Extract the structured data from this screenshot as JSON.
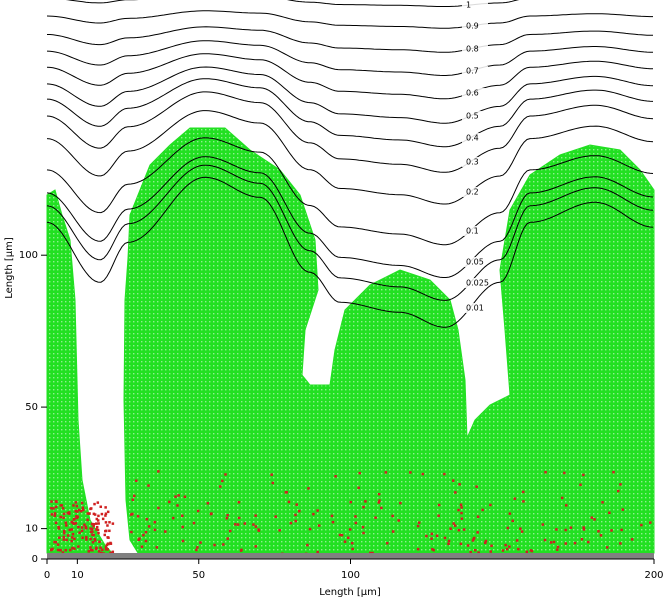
{
  "chart_data": {
    "type": "contour",
    "xlabel": "Length [µm]",
    "ylabel": "Length [µm]",
    "xlim": [
      0,
      200
    ],
    "ylim": [
      0,
      184
    ],
    "xticks": [
      0,
      10,
      50,
      100,
      200
    ],
    "yticks": [
      0,
      10,
      50,
      100
    ],
    "contour_levels": [
      1,
      0.9,
      0.8,
      0.7,
      0.6,
      0.5,
      0.4,
      0.3,
      0.2,
      0.1,
      0.05,
      0.025,
      0.01
    ],
    "contour_color": "#000000",
    "colony_color": "#22e022",
    "particle_color": "#d02020",
    "substratum_color": "#808080"
  }
}
